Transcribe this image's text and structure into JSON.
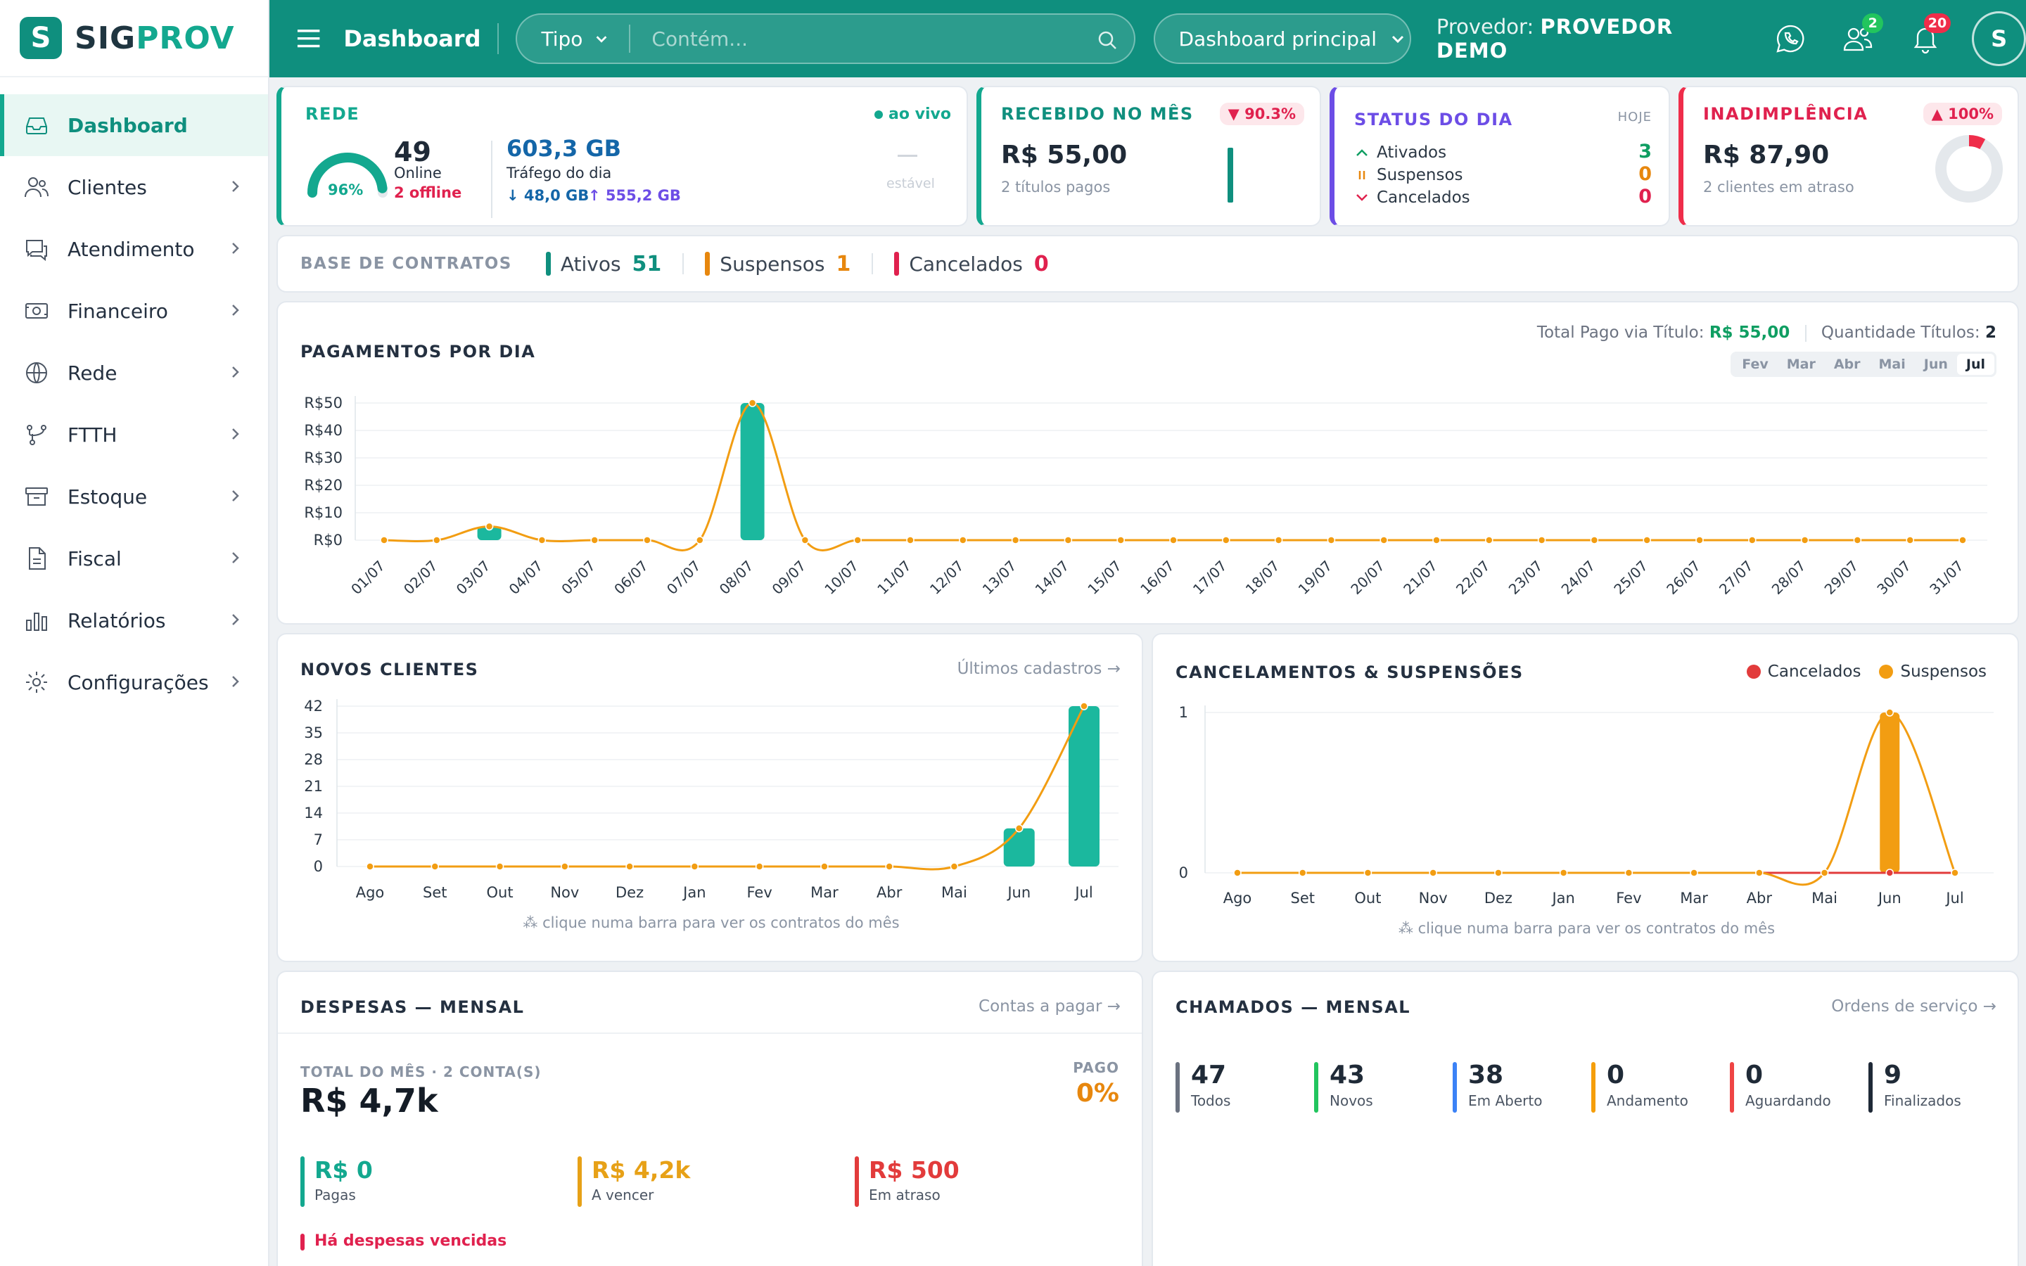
{
  "brand": {
    "letter": "S",
    "part1": "SIG",
    "part2": "PROV"
  },
  "sidebar": {
    "items": [
      {
        "label": "Dashboard",
        "icon": "inbox-icon"
      },
      {
        "label": "Clientes",
        "icon": "users-icon"
      },
      {
        "label": "Atendimento",
        "icon": "chat-icon"
      },
      {
        "label": "Financeiro",
        "icon": "money-icon"
      },
      {
        "label": "Rede",
        "icon": "globe-icon"
      },
      {
        "label": "FTTH",
        "icon": "fork-icon"
      },
      {
        "label": "Estoque",
        "icon": "archive-icon"
      },
      {
        "label": "Fiscal",
        "icon": "file-icon"
      },
      {
        "label": "Relatórios",
        "icon": "bar-chart-icon"
      },
      {
        "label": "Configurações",
        "icon": "gear-icon"
      }
    ]
  },
  "topbar": {
    "title": "Dashboard",
    "search_type": "Tipo",
    "search_placeholder": "Contém...",
    "dashboard_select": "Dashboard principal",
    "provider_label": "Provedor:",
    "provider_name": "PROVEDOR DEMO",
    "users_badge": "2",
    "notifications_badge": "20",
    "avatar_letter": "S"
  },
  "rede": {
    "title": "REDE",
    "live": "ao vivo",
    "gauge_pct": "96%",
    "gauge_value": 0.96,
    "online_count": "49",
    "online_label": "Online",
    "offline": "2 offline",
    "traffic": "603,3 GB",
    "traffic_label": "Tráfego do dia",
    "download": "↓ 48,0 GB",
    "upload": "↑ 555,2 GB",
    "trend_dash": "—",
    "trend": "estável",
    "color": "#13a88f"
  },
  "recebido": {
    "title": "RECEBIDO NO MÊS",
    "change": "▼ 90.3%",
    "value": "R$ 55,00",
    "sub": "2 títulos pagos"
  },
  "status_dia": {
    "title": "STATUS DO DIA",
    "tag": "HOJE",
    "rows": [
      {
        "icon": "^",
        "label": "Ativados",
        "value": "3",
        "color": "#0f9e62"
      },
      {
        "icon": "||",
        "label": "Suspensos",
        "value": "0",
        "color": "#e7870e"
      },
      {
        "icon": "v",
        "label": "Cancelados",
        "value": "0",
        "color": "#e0214e"
      }
    ]
  },
  "inadimplencia": {
    "title": "INADIMPLÊNCIA",
    "change": "▲ 100%",
    "value": "R$ 87,90",
    "sub": "2 clientes em atraso",
    "ring_fill": 0.08
  },
  "base_contratos": {
    "title": "BASE DE CONTRATOS",
    "items": [
      {
        "label": "Ativos",
        "value": "51",
        "color": "#0f8f7e"
      },
      {
        "label": "Suspensos",
        "value": "1",
        "color": "#e7870e"
      },
      {
        "label": "Cancelados",
        "value": "0",
        "color": "#e0214e"
      }
    ]
  },
  "pagamentos": {
    "title": "PAGAMENTOS POR DIA",
    "total_label": "Total Pago via Título:",
    "total_value": "R$ 55,00",
    "qty_label": "Quantidade Títulos:",
    "qty_value": "2",
    "months": [
      "Fev",
      "Mar",
      "Abr",
      "Mai",
      "Jun",
      "Jul"
    ],
    "active_month": "Jul"
  },
  "novos_clientes": {
    "title": "NOVOS CLIENTES",
    "link": "Últimos cadastros →",
    "hint": "clique numa barra para ver os contratos do mês"
  },
  "cancelamentos": {
    "title": "CANCELAMENTOS & SUSPENSÕES",
    "legend_canc": "Cancelados",
    "legend_susp": "Suspensos",
    "hint": "clique numa barra para ver os contratos do mês"
  },
  "despesas": {
    "title": "DESPESAS — MENSAL",
    "link": "Contas a pagar →",
    "total_label": "TOTAL DO MÊS · 2 CONTA(S)",
    "total": "R$ 4,7k",
    "pago_label": "PAGO",
    "pago_value": "0%",
    "stats": [
      {
        "value": "R$ 0",
        "label": "Pagas",
        "color": "#13a88f"
      },
      {
        "value": "R$ 4,2k",
        "label": "A vencer",
        "color": "#e7a117"
      },
      {
        "value": "R$ 500",
        "label": "Em atraso",
        "color": "#e23b3b"
      }
    ],
    "alert": "Há despesas vencidas"
  },
  "chamados": {
    "title": "CHAMADOS — MENSAL",
    "link": "Ordens de serviço →",
    "stats": [
      {
        "value": "47",
        "label": "Todos",
        "color": "#6b7280"
      },
      {
        "value": "43",
        "label": "Novos",
        "color": "#22c55e"
      },
      {
        "value": "38",
        "label": "Em Aberto",
        "color": "#3b82f6"
      },
      {
        "value": "0",
        "label": "Andamento",
        "color": "#f59e0b"
      },
      {
        "value": "0",
        "label": "Aguardando",
        "color": "#ef4444"
      },
      {
        "value": "9",
        "label": "Finalizados",
        "color": "#1f2937"
      }
    ]
  },
  "colors": {
    "primary": "#0f8f7e",
    "accent": "#13a88f",
    "line": "#f29d12",
    "red": "#e23b3b"
  },
  "chart_data": [
    {
      "type": "bar",
      "title": "PAGAMENTOS POR DIA",
      "categories": [
        "01/07",
        "02/07",
        "03/07",
        "04/07",
        "05/07",
        "06/07",
        "07/07",
        "08/07",
        "09/07",
        "10/07",
        "11/07",
        "12/07",
        "13/07",
        "14/07",
        "15/07",
        "16/07",
        "17/07",
        "18/07",
        "19/07",
        "20/07",
        "21/07",
        "22/07",
        "23/07",
        "24/07",
        "25/07",
        "26/07",
        "27/07",
        "28/07",
        "29/07",
        "30/07",
        "31/07"
      ],
      "values": [
        0,
        0,
        5,
        0,
        0,
        0,
        0,
        50,
        0,
        0,
        0,
        0,
        0,
        0,
        0,
        0,
        0,
        0,
        0,
        0,
        0,
        0,
        0,
        0,
        0,
        0,
        0,
        0,
        0,
        0,
        0
      ],
      "yticks": [
        "R$0",
        "R$10",
        "R$20",
        "R$30",
        "R$40",
        "R$50"
      ],
      "ylim": [
        0,
        50
      ]
    },
    {
      "type": "bar",
      "title": "NOVOS CLIENTES",
      "categories": [
        "Ago",
        "Set",
        "Out",
        "Nov",
        "Dez",
        "Jan",
        "Fev",
        "Mar",
        "Abr",
        "Mai",
        "Jun",
        "Jul"
      ],
      "values": [
        0,
        0,
        0,
        0,
        0,
        0,
        0,
        0,
        0,
        0,
        10,
        42
      ],
      "yticks": [
        "0",
        "7",
        "14",
        "21",
        "28",
        "35",
        "42"
      ],
      "ylim": [
        0,
        42
      ]
    },
    {
      "type": "bar",
      "title": "CANCELAMENTOS & SUSPENSÕES",
      "categories": [
        "Ago",
        "Set",
        "Out",
        "Nov",
        "Dez",
        "Jan",
        "Fev",
        "Mar",
        "Abr",
        "Mai",
        "Jun",
        "Jul"
      ],
      "series": [
        {
          "name": "Cancelados",
          "values": [
            0,
            0,
            0,
            0,
            0,
            0,
            0,
            0,
            0,
            0,
            0,
            0
          ],
          "color": "#e23b3b"
        },
        {
          "name": "Suspensos",
          "values": [
            0,
            0,
            0,
            0,
            0,
            0,
            0,
            0,
            0,
            0,
            1,
            0
          ],
          "color": "#f29d12"
        }
      ],
      "yticks": [
        "0",
        "1"
      ],
      "ylim": [
        0,
        1
      ]
    }
  ]
}
